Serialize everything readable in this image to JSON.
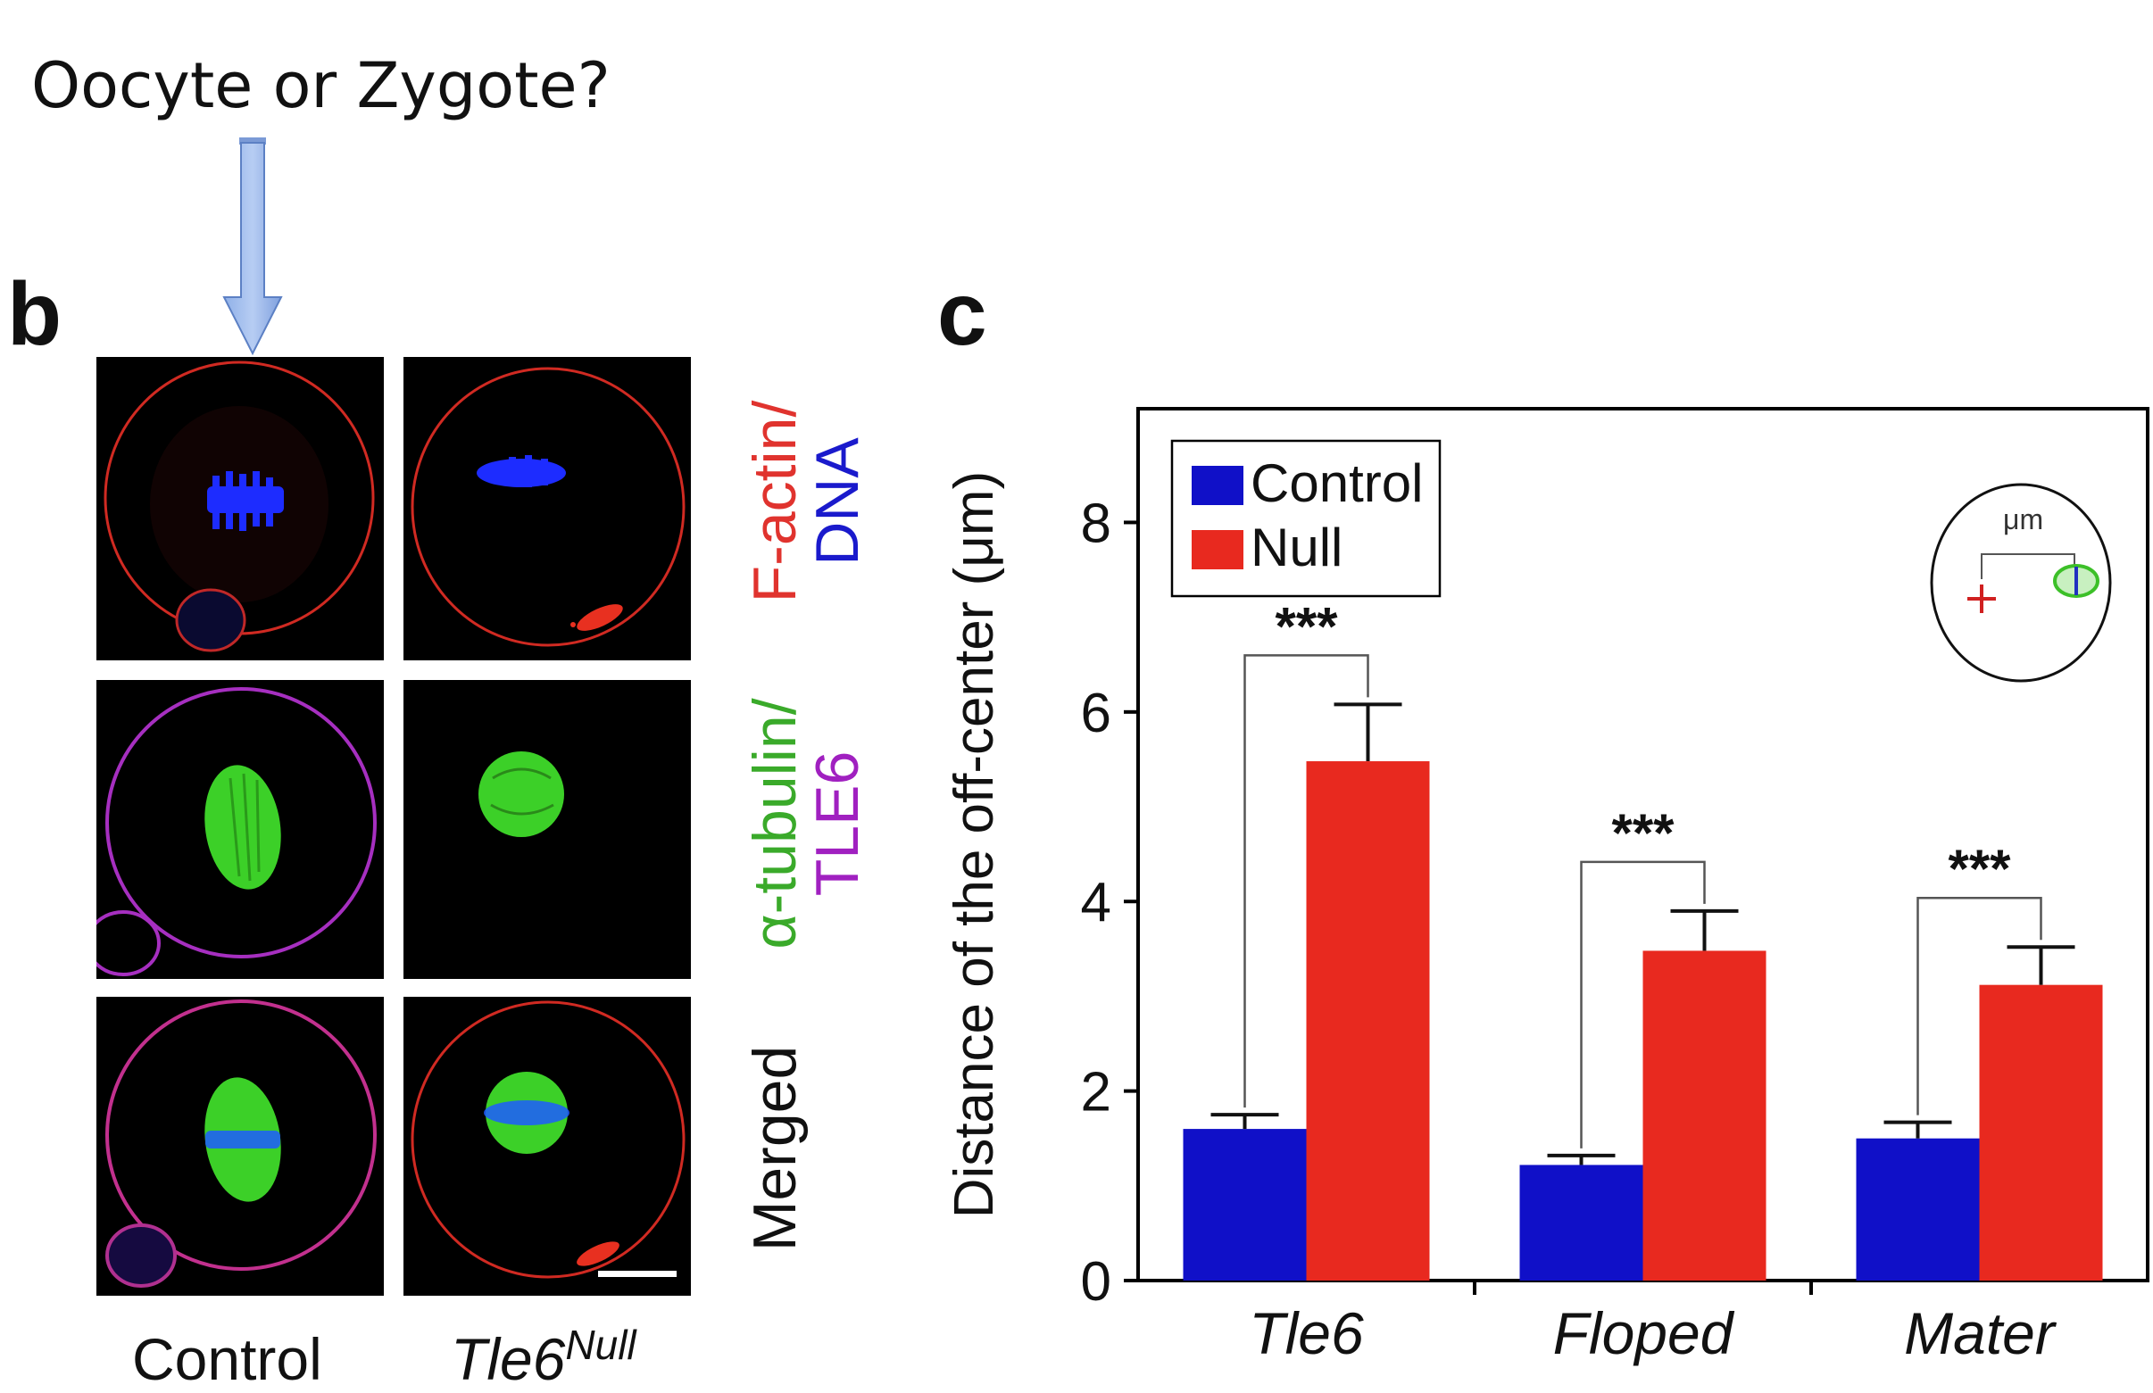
{
  "question": "Oocyte or Zygote?",
  "panel_b": {
    "letter": "b",
    "row_labels": {
      "row1": {
        "part1": "F-actin/",
        "part2": "DNA"
      },
      "row2": {
        "part1": "α-tubulin/",
        "part2": "TLE6"
      },
      "row3": "Merged"
    },
    "col_labels": {
      "control": "Control",
      "null_base": "Tle6",
      "null_sup": "Null"
    },
    "colors": {
      "factin": "#e0332e",
      "dna": "#1a1acc",
      "tubulin": "#3aaa2a",
      "tle6": "#a020c0"
    }
  },
  "panel_c": {
    "letter": "c",
    "inset_unit": "μm"
  },
  "chart_data": {
    "type": "bar",
    "categories": [
      "Tle6",
      "Floped",
      "Mater"
    ],
    "series": [
      {
        "name": "Control",
        "values": [
          1.6,
          1.22,
          1.5
        ],
        "errors": [
          0.15,
          0.1,
          0.17
        ],
        "color": "#1010c8"
      },
      {
        "name": "Null",
        "values": [
          5.48,
          3.48,
          3.12
        ],
        "errors": [
          0.6,
          0.42,
          0.4
        ],
        "color": "#e8291f"
      }
    ],
    "significance": [
      "***",
      "***",
      "***"
    ],
    "ylabel": "Distance of the off-center (μm)",
    "xlabel": "",
    "ylim": [
      0,
      9.2
    ],
    "yticks": [
      0,
      2,
      4,
      6,
      8
    ],
    "legend_position": "top-left",
    "grid": false
  }
}
